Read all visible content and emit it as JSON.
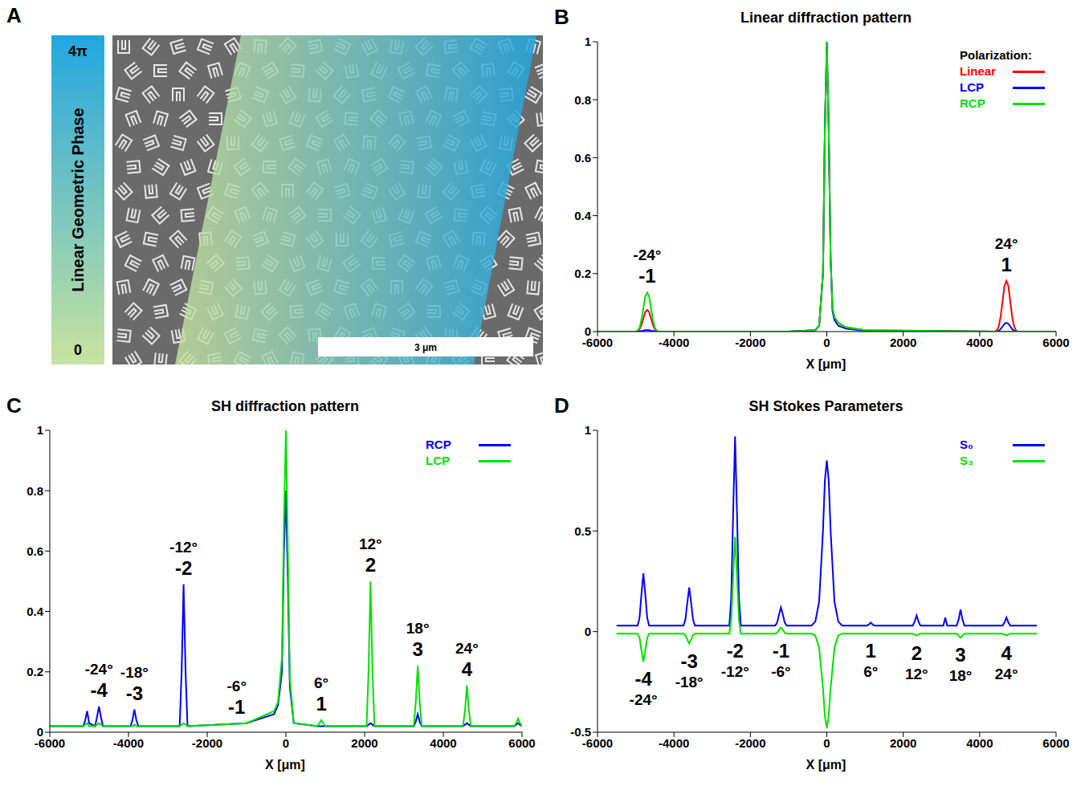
{
  "chart_data": [
    {
      "type": "image",
      "panel": "A",
      "colorbar_label": "Linear Geometric Phase",
      "colorbar_range": [
        0,
        12.566
      ],
      "colorbar_ticks": [
        {
          "value": 0,
          "label": "0"
        },
        {
          "value": 12.566,
          "label": "4π"
        }
      ],
      "scale_bar": "3 μm"
    },
    {
      "type": "line",
      "panel": "B",
      "title": "Linear diffraction pattern",
      "x_label": "X [μm]",
      "xlim": [
        -6000,
        6000
      ],
      "xticks": [
        -6000,
        -4000,
        -2000,
        0,
        2000,
        4000,
        6000
      ],
      "ylim": [
        0,
        1
      ],
      "yticks": [
        0,
        0.2,
        0.4,
        0.6,
        0.8,
        1
      ],
      "legend": "top-right",
      "legend_title": "Polarization:",
      "x": [
        -6000,
        -5000,
        -4950,
        -4900,
        -4850,
        -4800,
        -4750,
        -4700,
        -4650,
        -4600,
        -4550,
        -4500,
        -4450,
        -4400,
        -1000,
        -300,
        -200,
        -100,
        -50,
        0,
        50,
        100,
        150,
        200,
        300,
        500,
        1000,
        4400,
        4450,
        4500,
        4550,
        4600,
        4650,
        4700,
        4750,
        4800,
        4850,
        4900,
        4950,
        5000,
        6000
      ],
      "series": [
        {
          "name": "Linear",
          "color": "#ff0000",
          "values": [
            0,
            0,
            0.002,
            0.008,
            0.023,
            0.045,
            0.068,
            0.075,
            0.068,
            0.045,
            0.023,
            0.008,
            0.002,
            0,
            0,
            0.005,
            0.02,
            0.2,
            0.7,
            0.98,
            0.7,
            0.25,
            0.08,
            0.05,
            0.03,
            0.015,
            0.005,
            0,
            0.004,
            0.018,
            0.053,
            0.105,
            0.158,
            0.175,
            0.158,
            0.105,
            0.053,
            0.018,
            0.004,
            0,
            0
          ]
        },
        {
          "name": "LCP",
          "color": "#0000ff",
          "values": [
            0,
            0,
            0,
            0.001,
            0.002,
            0.003,
            0.005,
            0.005,
            0.005,
            0.003,
            0.002,
            0.001,
            0,
            0,
            0,
            0.005,
            0.02,
            0.2,
            0.7,
            1,
            0.7,
            0.25,
            0.07,
            0.04,
            0.02,
            0.01,
            0.003,
            0,
            0.001,
            0.003,
            0.009,
            0.018,
            0.027,
            0.03,
            0.027,
            0.018,
            0.009,
            0.003,
            0.001,
            0,
            0
          ]
        },
        {
          "name": "RCP",
          "color": "#00e000",
          "values": [
            0,
            0,
            0.003,
            0.014,
            0.041,
            0.081,
            0.122,
            0.135,
            0.122,
            0.081,
            0.041,
            0.014,
            0.003,
            0,
            0,
            0.005,
            0.02,
            0.2,
            0.7,
            1,
            0.7,
            0.25,
            0.08,
            0.05,
            0.03,
            0.015,
            0.005,
            0,
            0,
            0,
            0,
            0,
            0,
            0,
            0,
            0,
            0,
            0,
            0,
            0,
            0
          ]
        }
      ],
      "annotations": [
        {
          "x": -4700,
          "label": "-1",
          "angle": "-24°"
        },
        {
          "x": 4700,
          "label": "1",
          "angle": "24°"
        }
      ]
    },
    {
      "type": "line",
      "panel": "C",
      "title": "SH diffraction pattern",
      "x_label": "X [μm]",
      "xlim": [
        -6000,
        6000
      ],
      "xticks": [
        -6000,
        -4000,
        -2000,
        0,
        2000,
        4000,
        6000
      ],
      "ylim": [
        0,
        1
      ],
      "yticks": [
        0,
        0.2,
        0.4,
        0.6,
        0.8,
        1
      ],
      "legend": "top-right",
      "x": [
        -6000,
        -5150,
        -5100,
        -5050,
        -5000,
        -4850,
        -4800,
        -4750,
        -4700,
        -4650,
        -3950,
        -3900,
        -3850,
        -3800,
        -3750,
        -2700,
        -2650,
        -2600,
        -2550,
        -2500,
        -1000,
        -300,
        -200,
        -100,
        -50,
        0,
        50,
        100,
        200,
        800,
        850,
        900,
        950,
        1000,
        2050,
        2100,
        2150,
        2200,
        2250,
        3250,
        3300,
        3350,
        3400,
        3450,
        4500,
        4550,
        4600,
        4650,
        4700,
        5800,
        5850,
        5900,
        5950,
        6000
      ],
      "series": [
        {
          "name": "RCP",
          "color": "#0000ff",
          "values": [
            0.02,
            0.02,
            0.04,
            0.07,
            0.03,
            0.02,
            0.05,
            0.085,
            0.05,
            0.02,
            0.02,
            0.04,
            0.075,
            0.04,
            0.02,
            0.02,
            0.2,
            0.49,
            0.2,
            0.02,
            0.03,
            0.06,
            0.09,
            0.2,
            0.6,
            0.8,
            0.5,
            0.15,
            0.03,
            0.02,
            0.02,
            0.02,
            0.02,
            0.02,
            0.02,
            0.025,
            0.03,
            0.025,
            0.02,
            0.02,
            0.035,
            0.06,
            0.035,
            0.02,
            0.02,
            0.025,
            0.03,
            0.025,
            0.02,
            0.02,
            0.025,
            0.03,
            0.025,
            0.02
          ]
        },
        {
          "name": "LCP",
          "color": "#00e000",
          "values": [
            0.02,
            0.02,
            0.025,
            0.03,
            0.02,
            0.02,
            0.025,
            0.03,
            0.025,
            0.02,
            0.02,
            0.02,
            0.025,
            0.02,
            0.02,
            0.02,
            0.025,
            0.03,
            0.025,
            0.02,
            0.03,
            0.07,
            0.1,
            0.25,
            0.7,
            1,
            0.6,
            0.18,
            0.03,
            0.02,
            0.03,
            0.04,
            0.03,
            0.02,
            0.02,
            0.2,
            0.5,
            0.2,
            0.02,
            0.02,
            0.1,
            0.22,
            0.1,
            0.02,
            0.02,
            0.07,
            0.155,
            0.07,
            0.02,
            0.02,
            0.03,
            0.045,
            0.03,
            0.02
          ]
        }
      ],
      "annotations": [
        {
          "x": -4750,
          "label": "-4",
          "angle": "-24°"
        },
        {
          "x": -3850,
          "label": "-3",
          "angle": "-18°"
        },
        {
          "x": -2600,
          "label": "-2",
          "angle": "-12°"
        },
        {
          "x": -1250,
          "label": "-1",
          "angle": "-6°"
        },
        {
          "x": 900,
          "label": "1",
          "angle": "6°"
        },
        {
          "x": 2150,
          "label": "2",
          "angle": "12°"
        },
        {
          "x": 3350,
          "label": "3",
          "angle": "18°"
        },
        {
          "x": 4600,
          "label": "4",
          "angle": "24°"
        }
      ]
    },
    {
      "type": "line",
      "panel": "D",
      "title": "SH Stokes Parameters",
      "x_label": "X [μm]",
      "xlim": [
        -6000,
        6000
      ],
      "xticks": [
        -6000,
        -4000,
        -2000,
        0,
        2000,
        4000,
        6000
      ],
      "ylim": [
        -0.5,
        1
      ],
      "yticks": [
        -0.5,
        0,
        0.5,
        1
      ],
      "legend": "top-right",
      "x": [
        -5500,
        -4950,
        -4900,
        -4850,
        -4800,
        -4750,
        -4700,
        -4650,
        -3750,
        -3700,
        -3650,
        -3600,
        -3550,
        -3500,
        -3450,
        -2550,
        -2500,
        -2450,
        -2400,
        -2350,
        -2300,
        -2250,
        -1350,
        -1300,
        -1250,
        -1200,
        -1150,
        -1100,
        -1050,
        -400,
        -300,
        -200,
        -100,
        -50,
        0,
        50,
        100,
        200,
        300,
        400,
        1050,
        1100,
        1150,
        1200,
        1250,
        2250,
        2300,
        2350,
        2400,
        2450,
        3050,
        3100,
        3150,
        3400,
        3450,
        3500,
        3550,
        3600,
        4600,
        4650,
        4700,
        4750,
        4800,
        5500
      ],
      "series": [
        {
          "name": "S₀",
          "color": "#0000ff",
          "values": [
            0.03,
            0.03,
            0.069,
            0.186,
            0.29,
            0.186,
            0.069,
            0.03,
            0.03,
            0.059,
            0.144,
            0.22,
            0.144,
            0.059,
            0.03,
            0.03,
            0.171,
            0.594,
            0.97,
            0.594,
            0.171,
            0.03,
            0.03,
            0.044,
            0.084,
            0.12,
            0.084,
            0.044,
            0.03,
            0.03,
            0.05,
            0.15,
            0.5,
            0.75,
            0.85,
            0.75,
            0.5,
            0.15,
            0.05,
            0.03,
            0.03,
            0.035,
            0.045,
            0.035,
            0.03,
            0.03,
            0.05,
            0.08,
            0.05,
            0.03,
            0.03,
            0.07,
            0.03,
            0.03,
            0.06,
            0.11,
            0.06,
            0.03,
            0.03,
            0.045,
            0.07,
            0.045,
            0.03,
            0.03
          ]
        },
        {
          "name": "S₃",
          "color": "#00e000",
          "values": [
            -0.01,
            -0.01,
            -0.031,
            -0.094,
            -0.15,
            -0.094,
            -0.031,
            -0.01,
            -0.01,
            -0.018,
            -0.04,
            -0.06,
            -0.04,
            -0.018,
            -0.01,
            -0.01,
            0.062,
            0.278,
            0.47,
            0.278,
            0.062,
            -0.01,
            -0.01,
            -0.006,
            0.008,
            0.02,
            0.008,
            -0.006,
            -0.01,
            -0.01,
            -0.02,
            -0.08,
            -0.28,
            -0.42,
            -0.48,
            -0.42,
            -0.28,
            -0.08,
            -0.02,
            -0.01,
            -0.01,
            -0.01,
            -0.01,
            -0.01,
            -0.01,
            -0.01,
            -0.015,
            -0.02,
            -0.015,
            -0.01,
            -0.01,
            -0.01,
            -0.01,
            -0.01,
            -0.02,
            -0.03,
            -0.02,
            -0.01,
            -0.01,
            -0.015,
            -0.02,
            -0.015,
            -0.01,
            -0.01
          ]
        }
      ],
      "annotations": [
        {
          "x": -4800,
          "label": "-4",
          "angle": "-24°"
        },
        {
          "x": -3600,
          "label": "-3",
          "angle": "-18°"
        },
        {
          "x": -2400,
          "label": "-2",
          "angle": "-12°"
        },
        {
          "x": -1200,
          "label": "-1",
          "angle": "-6°"
        },
        {
          "x": 1150,
          "label": "1",
          "angle": "6°"
        },
        {
          "x": 2350,
          "label": "2",
          "angle": "12°"
        },
        {
          "x": 3500,
          "label": "3",
          "angle": "18°"
        },
        {
          "x": 4700,
          "label": "4",
          "angle": "24°"
        }
      ]
    }
  ]
}
